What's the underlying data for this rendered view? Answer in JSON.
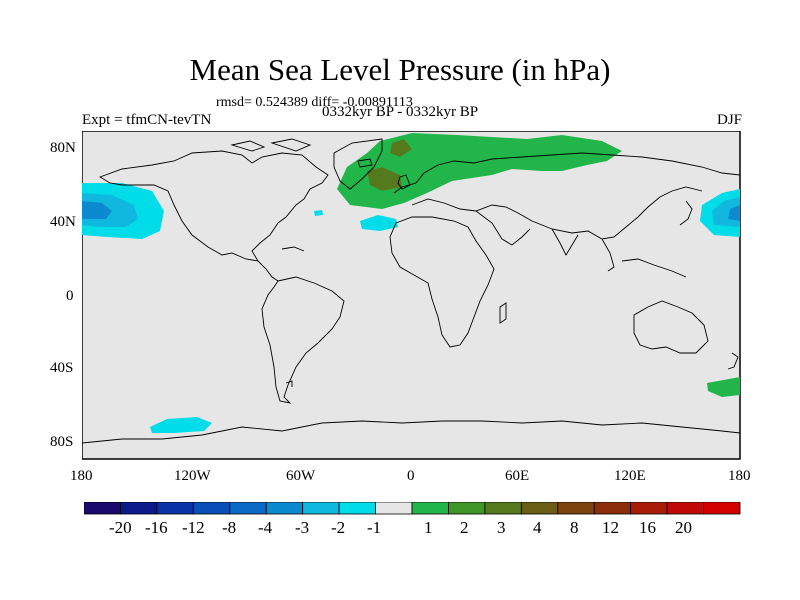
{
  "title": "Mean Sea Level Pressure (in hPa)",
  "stats": "rmsd= 0.524389 diff= -0.00891113",
  "experiment": "Expt = tfmCN-tevTN",
  "period": "0332kyr BP - 0332kyr BP",
  "season": "DJF",
  "colors": {
    "ocean_land_bg": "#e6e6e6",
    "coastline": "#000000",
    "positive_1_2": "#22b64a",
    "positive_3_4": "#557a1e",
    "negative_1_2": "#00dde8",
    "negative_2_3": "#10b8e0",
    "negative_3_4": "#0c8ad0"
  },
  "map": {
    "projection": "cylindrical-equidistant",
    "lon_range": [
      -180,
      180
    ],
    "lat_range": [
      -90,
      90
    ],
    "lat_ticks": [
      {
        "value": 80,
        "label": "80N"
      },
      {
        "value": 40,
        "label": "40N"
      },
      {
        "value": 0,
        "label": "0"
      },
      {
        "value": -40,
        "label": "40S"
      },
      {
        "value": -80,
        "label": "80S"
      }
    ],
    "lon_ticks": [
      {
        "value": -180,
        "label": "180"
      },
      {
        "value": -120,
        "label": "120W"
      },
      {
        "value": -60,
        "label": "60W"
      },
      {
        "value": 0,
        "label": "0"
      },
      {
        "value": 60,
        "label": "60E"
      },
      {
        "value": 120,
        "label": "120E"
      },
      {
        "value": 180,
        "label": "180"
      }
    ]
  },
  "colorbar": {
    "colors": [
      "#1a0a6e",
      "#0a1a8a",
      "#0a34a6",
      "#0850b8",
      "#0a6ac6",
      "#0c8ad0",
      "#10b8e0",
      "#00dde8",
      "#e6e6e6",
      "#22b64a",
      "#3f9628",
      "#557a1e",
      "#6a5e14",
      "#7e4410",
      "#8c2e0c",
      "#a81c08",
      "#c00a08",
      "#d40000"
    ],
    "labels": [
      "-20",
      "-16",
      "-12",
      "-8",
      "-4",
      "-3",
      "-2",
      "-1",
      "1",
      "2",
      "3",
      "4",
      "8",
      "12",
      "16",
      "20"
    ]
  }
}
